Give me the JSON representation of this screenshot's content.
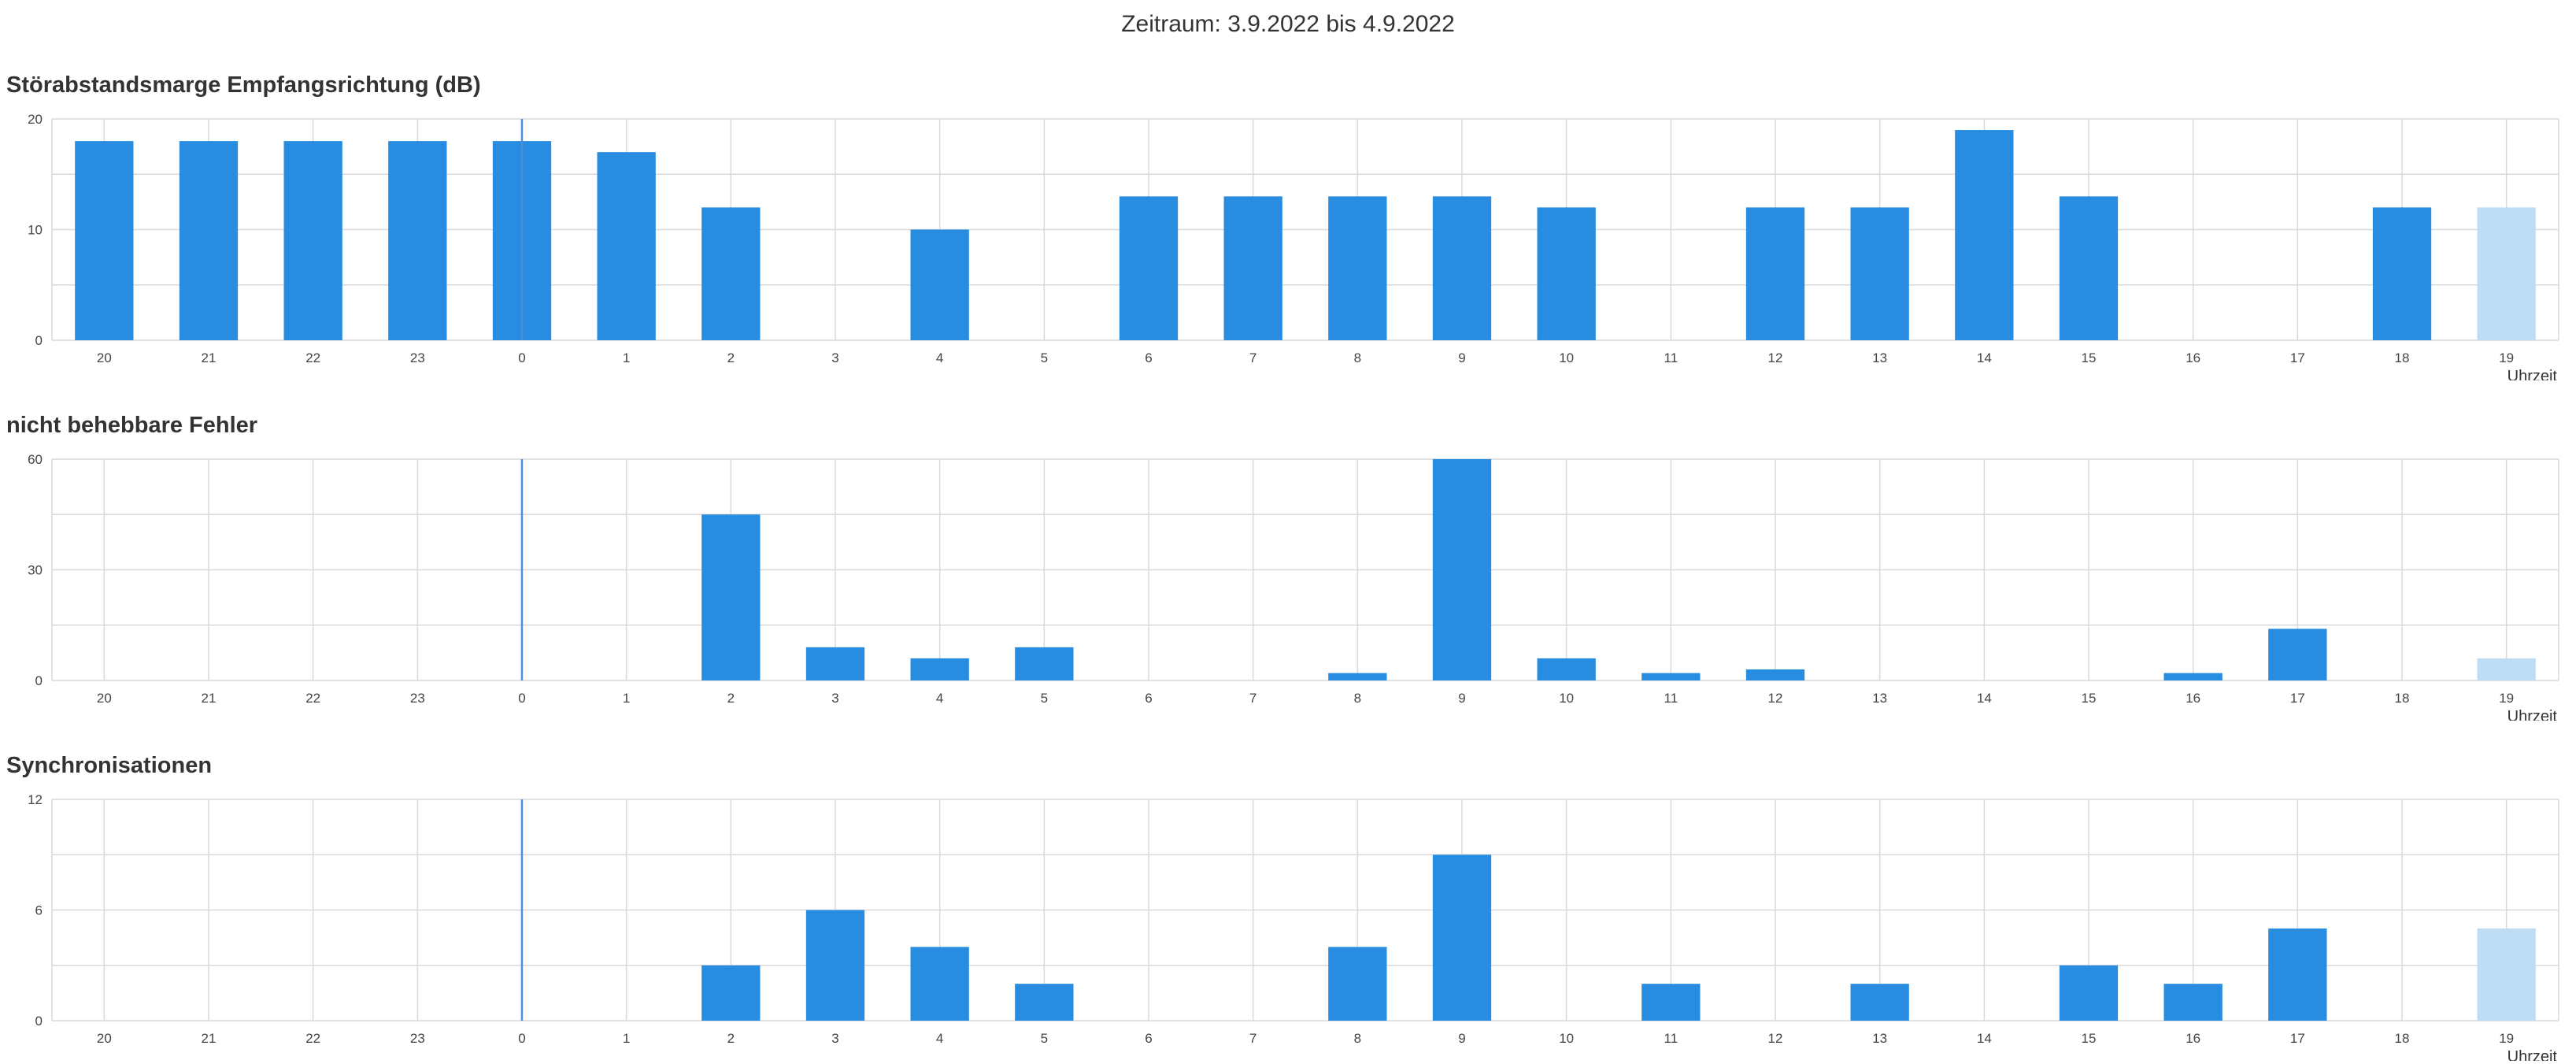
{
  "header": {
    "period": "Zeitraum: 3.9.2022 bis 4.9.2022"
  },
  "colors": {
    "bar": "#288de0",
    "bar_current": "#bedcf4",
    "grid": "#d9d9d9",
    "marker": "#4a90d9"
  },
  "chart_data": [
    {
      "type": "bar",
      "title": "Störabstandsmarge Empfangsrichtung (dB)",
      "xlabel": "Uhrzeit",
      "ylabel": "",
      "ylim": [
        0,
        20
      ],
      "yticks": [
        "0",
        "10",
        "20"
      ],
      "categories": [
        "20",
        "21",
        "22",
        "23",
        "0",
        "1",
        "2",
        "3",
        "4",
        "5",
        "6",
        "7",
        "8",
        "9",
        "10",
        "11",
        "12",
        "13",
        "14",
        "15",
        "16",
        "17",
        "18",
        "19"
      ],
      "values": [
        18,
        18,
        18,
        18,
        18,
        17,
        12,
        0,
        10,
        0,
        13,
        13,
        13,
        13,
        12,
        0,
        12,
        12,
        19,
        13,
        0,
        0,
        12,
        12
      ],
      "day_change_at": "0",
      "current_hour": "19",
      "grid": true,
      "legend": "none"
    },
    {
      "type": "bar",
      "title": "nicht behebbare Fehler",
      "xlabel": "Uhrzeit",
      "ylabel": "",
      "ylim": [
        0,
        60
      ],
      "yticks": [
        "0",
        "30",
        "60"
      ],
      "categories": [
        "20",
        "21",
        "22",
        "23",
        "0",
        "1",
        "2",
        "3",
        "4",
        "5",
        "6",
        "7",
        "8",
        "9",
        "10",
        "11",
        "12",
        "13",
        "14",
        "15",
        "16",
        "17",
        "18",
        "19"
      ],
      "values": [
        0,
        0,
        0,
        0,
        0,
        0,
        45,
        9,
        6,
        9,
        0,
        0,
        2,
        60,
        6,
        2,
        3,
        0,
        0,
        0,
        2,
        14,
        0,
        6
      ],
      "day_change_at": "0",
      "current_hour": "19",
      "grid": true,
      "legend": "none"
    },
    {
      "type": "bar",
      "title": "Synchronisationen",
      "xlabel": "Uhrzeit",
      "ylabel": "",
      "ylim": [
        0,
        12
      ],
      "yticks": [
        "0",
        "6",
        "12"
      ],
      "categories": [
        "20",
        "21",
        "22",
        "23",
        "0",
        "1",
        "2",
        "3",
        "4",
        "5",
        "6",
        "7",
        "8",
        "9",
        "10",
        "11",
        "12",
        "13",
        "14",
        "15",
        "16",
        "17",
        "18",
        "19"
      ],
      "values": [
        0,
        0,
        0,
        0,
        0,
        0,
        3,
        6,
        4,
        2,
        0,
        0,
        4,
        9,
        0,
        2,
        0,
        2,
        0,
        3,
        2,
        5,
        0,
        5
      ],
      "day_change_at": "0",
      "current_hour": "19",
      "grid": true,
      "legend": "none"
    }
  ]
}
